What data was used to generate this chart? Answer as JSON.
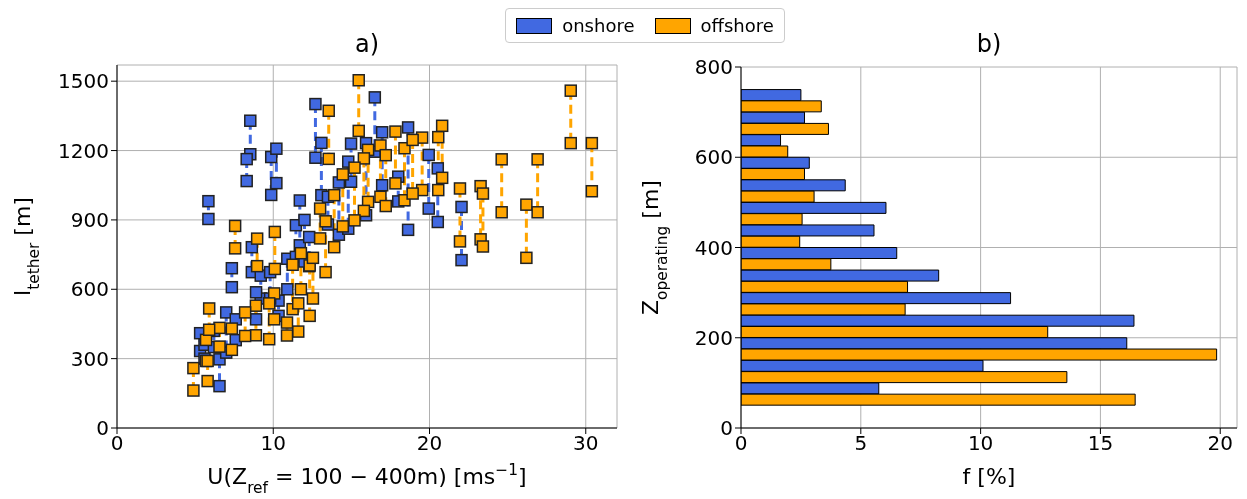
{
  "chart_data": [
    {
      "type": "scatter",
      "title": "a)",
      "xlabel": "U(Z$_{ref}$ = 100 − 400m) [ms$^{−1}$]",
      "ylabel": "l$_{tether}$ [m]",
      "xlim": [
        0,
        32
      ],
      "xticks": [
        0,
        10,
        20,
        30
      ],
      "ylim": [
        0,
        1570
      ],
      "yticks": [
        0,
        300,
        600,
        900,
        1200,
        1500
      ],
      "grid": true,
      "legend": "top",
      "marker": "square",
      "series": [
        {
          "type": "line",
          "line_style": "dashed",
          "marker": "none",
          "color": "#4169e1",
          "x": [
            5.85,
            5.85,
            null,
            8.53,
            8.53,
            null,
            8.3,
            8.3,
            null,
            9.87,
            9.87,
            null,
            10.2,
            10.2,
            null,
            12.7,
            12.7,
            null,
            13.08,
            13.08,
            null,
            14.98,
            14.98,
            null,
            11.7,
            11.7,
            null,
            7.35,
            7.35,
            null,
            8.63,
            8.63,
            null,
            6.56,
            6.56,
            null,
            5.32,
            5.32,
            null,
            6.99,
            6.99,
            null,
            9.2,
            9.2,
            null,
            12.3,
            12.3,
            null,
            14.2,
            14.2,
            null,
            14.8,
            14.8,
            null,
            10.34,
            10.34,
            null,
            8.9,
            8.9,
            null,
            9.8,
            9.8,
            null,
            10.9,
            10.9,
            null,
            11.45,
            11.45,
            null,
            16.5,
            16.5,
            null,
            16.97,
            16.97,
            null,
            18.63,
            18.63,
            null,
            19.95,
            19.95,
            null,
            20.53,
            20.53,
            null,
            22.05,
            22.05,
            null,
            15.94,
            15.94,
            null,
            18.0,
            18.0,
            null,
            5.6,
            5.6,
            null,
            6.2,
            6.2,
            null,
            7.6,
            7.6,
            null,
            12.0,
            12.0,
            null,
            13.5,
            13.5
          ],
          "values": [
            981,
            904,
            null,
            1329,
            1184,
            null,
            1163,
            1068,
            null,
            1172,
            1008,
            null,
            1208,
            1059,
            null,
            1401,
            1169,
            null,
            1233,
            1007,
            null,
            1230,
            1065,
            null,
            984,
            790,
            null,
            691,
            609,
            null,
            782,
            674,
            null,
            297,
            181,
            null,
            410,
            333,
            null,
            500,
            326,
            null,
            659,
            560,
            null,
            826,
            700,
            null,
            1062,
            836,
            null,
            1152,
            862,
            null,
            551,
            485,
            null,
            587,
            470,
            null,
            674,
            560,
            null,
            732,
            600,
            null,
            877,
            740,
            null,
            1430,
            1195,
            null,
            1279,
            1050,
            null,
            1300,
            857,
            null,
            1181,
            949,
            null,
            1123,
            891,
            null,
            956,
            726,
            null,
            1232,
            920,
            null,
            1087,
            980,
            null,
            360,
            300,
            null,
            420,
            350,
            null,
            470,
            380,
            null,
            900,
            720,
            null,
            1000,
            880
          ]
        },
        {
          "name": "onshore",
          "color": "#4169e1",
          "x": [
            5.85,
            5.85,
            8.53,
            8.53,
            8.3,
            8.3,
            9.87,
            9.87,
            10.2,
            10.2,
            12.7,
            12.7,
            13.08,
            13.08,
            14.98,
            14.98,
            11.7,
            11.7,
            7.35,
            7.35,
            8.63,
            8.63,
            6.56,
            6.56,
            5.32,
            5.32,
            6.99,
            6.99,
            9.2,
            9.2,
            12.3,
            12.3,
            14.2,
            14.2,
            14.8,
            14.8,
            10.34,
            10.34,
            8.9,
            8.9,
            9.8,
            9.8,
            10.9,
            10.9,
            11.45,
            11.45,
            16.5,
            16.5,
            16.97,
            16.97,
            18.63,
            18.63,
            19.95,
            19.95,
            20.53,
            20.53,
            22.05,
            22.05,
            15.94,
            15.94,
            18.0,
            18.0,
            5.6,
            5.6,
            6.2,
            6.2,
            7.6,
            7.6,
            12.0,
            12.0,
            13.5,
            13.5
          ],
          "values": [
            981,
            904,
            1329,
            1184,
            1163,
            1068,
            1172,
            1008,
            1208,
            1059,
            1401,
            1169,
            1233,
            1007,
            1230,
            1065,
            984,
            790,
            691,
            609,
            782,
            674,
            297,
            181,
            410,
            333,
            500,
            326,
            659,
            560,
            826,
            700,
            1062,
            836,
            1152,
            862,
            551,
            485,
            587,
            470,
            674,
            560,
            732,
            600,
            877,
            740,
            1430,
            1195,
            1279,
            1050,
            1300,
            857,
            1181,
            949,
            1123,
            891,
            956,
            726,
            1232,
            920,
            1087,
            980,
            360,
            300,
            420,
            350,
            470,
            380,
            900,
            720,
            1000,
            880
          ]
        },
        {
          "type": "line",
          "line_style": "dashed",
          "marker": "none",
          "color": "#ffa500",
          "x": [
            4.89,
            4.89,
            null,
            7.56,
            7.56,
            null,
            8.97,
            8.97,
            null,
            10.1,
            10.1,
            null,
            13.55,
            13.55,
            null,
            15.47,
            15.47,
            null,
            16.07,
            16.07,
            null,
            15.8,
            15.8,
            null,
            15.2,
            15.2,
            null,
            14.45,
            14.45,
            null,
            13.9,
            13.9,
            null,
            13.0,
            13.0,
            null,
            13.35,
            13.35,
            null,
            11.77,
            11.77,
            null,
            11.24,
            11.24,
            null,
            12.33,
            12.33,
            null,
            12.54,
            12.54,
            null,
            11.6,
            11.6,
            null,
            10.88,
            10.88,
            null,
            10.06,
            10.06,
            null,
            9.74,
            9.74,
            null,
            8.89,
            8.89,
            null,
            8.2,
            8.2,
            null,
            7.35,
            7.35,
            null,
            6.56,
            6.56,
            null,
            5.7,
            5.7,
            null,
            5.8,
            5.8,
            null,
            5.9,
            5.9,
            null,
            17.82,
            17.82,
            null,
            18.4,
            18.4,
            null,
            19.53,
            19.53,
            null,
            20.56,
            20.56,
            null,
            20.81,
            20.81,
            null,
            21.95,
            21.95,
            null,
            23.27,
            23.27,
            null,
            23.42,
            23.42,
            null,
            24.62,
            24.62,
            null,
            26.2,
            26.2,
            null,
            26.92,
            26.92,
            null,
            29.04,
            29.04,
            null,
            30.39,
            30.39,
            null,
            16.86,
            16.86,
            null,
            18.92,
            18.92,
            null,
            17.2,
            17.2
          ],
          "values": [
            259,
            162,
            null,
            874,
            777,
            null,
            819,
            700,
            null,
            848,
            688,
            null,
            1372,
            1164,
            null,
            1504,
            1285,
            null,
            1203,
            978,
            null,
            1166,
            939,
            null,
            1126,
            898,
            null,
            1097,
            872,
            null,
            1007,
            782,
            null,
            949,
            820,
            null,
            894,
            674,
            null,
            756,
            600,
            null,
            706,
            514,
            null,
            703,
            485,
            null,
            736,
            560,
            null,
            539,
            417,
            null,
            456,
            400,
            null,
            582,
            470,
            null,
            539,
            384,
            null,
            529,
            401,
            null,
            500,
            398,
            null,
            430,
            338,
            null,
            433,
            352,
            null,
            381,
            290,
            null,
            290,
            203,
            null,
            517,
            425,
            null,
            1282,
            1058,
            null,
            1210,
            985,
            null,
            1256,
            1029,
            null,
            1258,
            1029,
            null,
            1307,
            1082,
            null,
            1036,
            807,
            null,
            1046,
            816,
            null,
            1014,
            785,
            null,
            1162,
            933,
            null,
            966,
            736,
            null,
            1162,
            933,
            null,
            1459,
            1232,
            null,
            1232,
            1024,
            null,
            1222,
            1000,
            null,
            1246,
            1014,
            null,
            1180,
            960
          ]
        },
        {
          "name": "offshore",
          "color": "#ffa500",
          "x": [
            4.89,
            4.89,
            7.56,
            7.56,
            8.97,
            8.97,
            10.1,
            10.1,
            13.55,
            13.55,
            15.47,
            15.47,
            16.07,
            16.07,
            15.8,
            15.8,
            15.2,
            15.2,
            14.45,
            14.45,
            13.9,
            13.9,
            13.0,
            13.0,
            13.35,
            13.35,
            11.77,
            11.77,
            11.24,
            11.24,
            12.33,
            12.33,
            12.54,
            12.54,
            11.6,
            11.6,
            10.88,
            10.88,
            10.06,
            10.06,
            9.74,
            9.74,
            8.89,
            8.89,
            8.2,
            8.2,
            7.35,
            7.35,
            6.56,
            6.56,
            5.7,
            5.7,
            5.8,
            5.8,
            5.9,
            5.9,
            17.82,
            17.82,
            18.4,
            18.4,
            19.53,
            19.53,
            20.56,
            20.56,
            20.81,
            20.81,
            21.95,
            21.95,
            23.27,
            23.27,
            23.42,
            23.42,
            24.62,
            24.62,
            26.2,
            26.2,
            26.92,
            26.92,
            29.04,
            29.04,
            30.39,
            30.39,
            16.86,
            16.86,
            18.92,
            18.92,
            17.2,
            17.2
          ],
          "values": [
            259,
            162,
            874,
            777,
            819,
            700,
            848,
            688,
            1372,
            1164,
            1504,
            1285,
            1203,
            978,
            1166,
            939,
            1126,
            898,
            1097,
            872,
            1007,
            782,
            949,
            820,
            894,
            674,
            756,
            600,
            706,
            514,
            703,
            485,
            736,
            560,
            539,
            417,
            456,
            400,
            582,
            470,
            539,
            384,
            529,
            401,
            500,
            398,
            430,
            338,
            433,
            352,
            381,
            290,
            290,
            203,
            517,
            425,
            1282,
            1058,
            1210,
            985,
            1256,
            1029,
            1258,
            1029,
            1307,
            1082,
            1036,
            807,
            1046,
            816,
            1014,
            785,
            1162,
            933,
            966,
            736,
            1162,
            933,
            1459,
            1232,
            1232,
            1024,
            1222,
            1000,
            1246,
            1014,
            1180,
            960
          ]
        }
      ]
    },
    {
      "type": "bar",
      "orientation": "horizontal",
      "title": "b)",
      "xlabel": "f [%]",
      "ylabel": "Z$_{operating}$ [m]",
      "xlim": [
        0,
        20.7
      ],
      "xticks": [
        0,
        5,
        10,
        15,
        20
      ],
      "ylim": [
        0,
        800
      ],
      "yticks": [
        0,
        200,
        400,
        600,
        800
      ],
      "grid": true,
      "legend": "top",
      "series": [
        {
          "name": "onshore",
          "color": "#4169e1",
          "x": [
            87.5,
            137.5,
            187.5,
            237.5,
            287.5,
            337.5,
            387.5,
            437.5,
            487.5,
            537.5,
            587.5,
            637.5,
            687.5,
            737.5
          ],
          "values": [
            5.75,
            10.1,
            16.1,
            16.4,
            11.25,
            8.25,
            6.5,
            5.55,
            6.05,
            4.35,
            2.85,
            1.65,
            2.65,
            2.5
          ]
        },
        {
          "name": "offshore",
          "color": "#ffa500",
          "x": [
            62.5,
            112.5,
            162.5,
            212.5,
            262.5,
            312.5,
            362.5,
            412.5,
            462.5,
            512.5,
            562.5,
            612.5,
            662.5,
            712.5
          ],
          "values": [
            16.45,
            13.6,
            19.85,
            12.8,
            6.85,
            6.95,
            3.75,
            2.45,
            2.55,
            3.05,
            2.65,
            1.95,
            3.65,
            3.35
          ]
        }
      ]
    }
  ]
}
